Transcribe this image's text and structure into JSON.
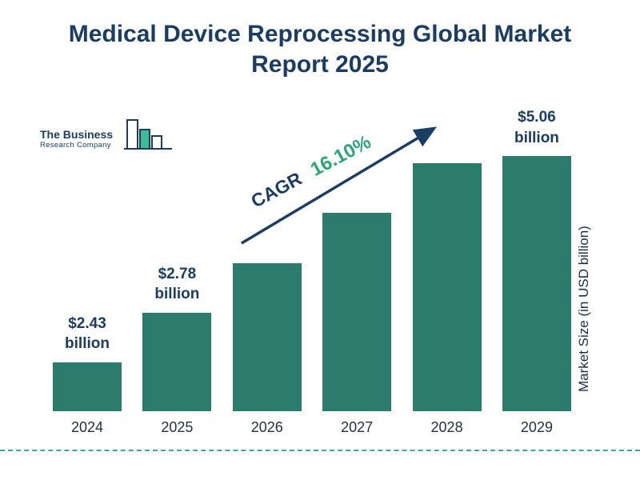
{
  "title": {
    "line1": "Medical Device Reprocessing Global Market",
    "line2": "Report 2025",
    "full": "Medical Device Reprocessing Global Market Report 2025"
  },
  "logo": {
    "line1": "The Business",
    "line2": "Research Company"
  },
  "cagr": {
    "label": "CAGR",
    "value": "16.10%"
  },
  "colors": {
    "bar": "#2b7c6c",
    "title": "#1b3c63",
    "arrow": "#1b3c63",
    "cagr_value_green": "#2aa678",
    "dashed_line": "#38a8a0",
    "logo_accent": "#3dbd94"
  },
  "chart_data": {
    "type": "bar",
    "title": "Medical Device Reprocessing Global Market Report 2025",
    "categories": [
      "2024",
      "2025",
      "2026",
      "2027",
      "2028",
      "2029"
    ],
    "values": [
      2.43,
      2.78,
      3.23,
      3.75,
      4.35,
      5.06
    ],
    "value_labels": [
      "$2.43 billion",
      "$2.78 billion",
      null,
      null,
      null,
      "$5.06 billion"
    ],
    "xlabel": "",
    "ylabel": "Market Size (in USD billion)",
    "annotation": "CAGR 16.10%",
    "legend": false,
    "grid": false,
    "ylim": [
      0,
      5.5
    ]
  }
}
